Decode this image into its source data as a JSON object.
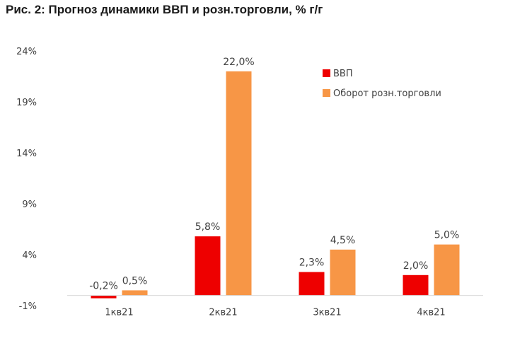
{
  "title": "Рис. 2: Прогноз динамики ВВП и розн.торговли, % г/г",
  "chart_data": {
    "type": "bar",
    "title": "Рис. 2: Прогноз динамики ВВП и розн.торговли, % г/г",
    "xlabel": "",
    "ylabel": "",
    "categories": [
      "1кв21",
      "2кв21",
      "3кв21",
      "4кв21"
    ],
    "series": [
      {
        "name": "ВВП",
        "color": "#ee0000",
        "values": [
          -0.2,
          5.8,
          2.3,
          2.0
        ],
        "labels": [
          "-0,2%",
          "5,8%",
          "2,3%",
          "2,0%"
        ]
      },
      {
        "name": "Оборот розн.торговли",
        "color": "#f79646",
        "values": [
          0.5,
          22.0,
          4.5,
          5.0
        ],
        "labels": [
          "0,5%",
          "22,0%",
          "4,5%",
          "5,0%"
        ]
      }
    ],
    "ylim": [
      -1,
      24
    ],
    "yticks": [
      24,
      19,
      14,
      9,
      4,
      -1
    ],
    "ytick_labels": [
      "24%",
      "19%",
      "14%",
      "9%",
      "4%",
      "-1%"
    ],
    "grid": false,
    "legend": "top-right"
  }
}
